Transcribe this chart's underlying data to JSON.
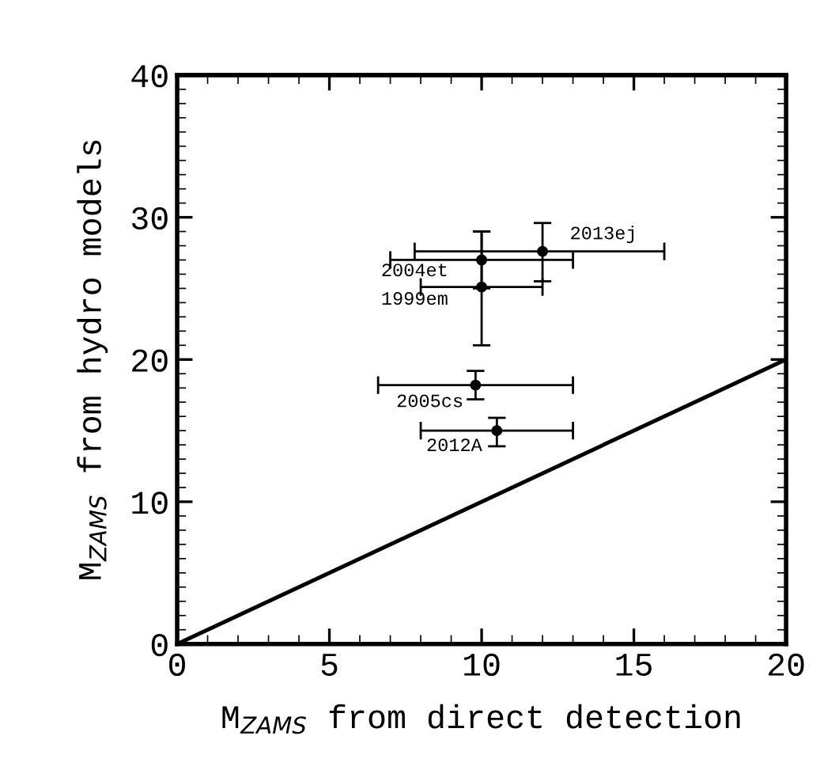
{
  "chart_data": {
    "type": "scatter",
    "xlabel": "M$_{ZAMS}$ from direct detection",
    "ylabel": "M$_{ZAMS}$ from hydro models",
    "xlim": [
      0,
      20
    ],
    "ylim": [
      0,
      40
    ],
    "xticks": [
      0,
      5,
      10,
      15,
      20
    ],
    "yticks": [
      0,
      10,
      20,
      30,
      40
    ],
    "grid": false,
    "legend": false,
    "marker": "circle",
    "series": [
      {
        "color": "#000000",
        "x": [
          12.0,
          10.0,
          10.0,
          9.8,
          10.5
        ],
        "values": [
          27.6,
          27.0,
          25.1,
          18.2,
          15.0
        ],
        "errors": [
          [
            25.5,
            29.6
          ],
          [
            25.0,
            29.0
          ],
          [
            21.0,
            29.0
          ],
          [
            17.2,
            19.2
          ],
          [
            13.9,
            15.9
          ]
        ],
        "xerrors": [
          [
            7.8,
            16.0
          ],
          [
            7.0,
            13.0
          ],
          [
            8.0,
            12.0
          ],
          [
            6.6,
            13.0
          ],
          [
            8.0,
            13.0
          ]
        ]
      },
      {
        "type": "line",
        "color": "#000000",
        "x": [
          0,
          20
        ],
        "values": [
          0,
          20
        ],
        "marker": "none",
        "line_style": "solid"
      }
    ],
    "annotations": [
      "2013ej",
      "2004et",
      "1999em",
      "2005cs",
      "2012A"
    ]
  }
}
